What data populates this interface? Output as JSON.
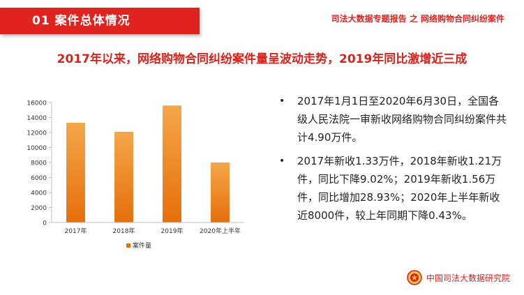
{
  "header": {
    "section_title": "01  案件总体情况",
    "report_title": "司法大数据专题报告 之 网络购物合同纠纷案件"
  },
  "headline": "2017年以来，网络购物合同纠纷案件量呈波动走势，2019年同比激增近三成",
  "chart_data": {
    "type": "bar",
    "categories": [
      "2017年",
      "2018年",
      "2019年",
      "2020年上半年"
    ],
    "series": [
      {
        "name": "案件量",
        "values": [
          13300,
          12100,
          15600,
          8000
        ]
      }
    ],
    "yticks": [
      "0",
      "2000",
      "4000",
      "6000",
      "8000",
      "10000",
      "12000",
      "14000",
      "16000"
    ],
    "ylim": [
      0,
      16000
    ],
    "grid": false,
    "legend": "bottom",
    "colors": {
      "bar_top": "#f5a64a",
      "bar_bottom": "#e56f0a",
      "axis": "#bfbfbf"
    }
  },
  "bullets": [
    "2017年1月1日至2020年6月30日，全国各级人民法院一审新收网络购物合同纠纷案件共计4.90万件。",
    "2017年新收1.33万件，2018年新收1.21万件，同比下降9.02%；2019年新收1.56万件，同比增加28.93%；2020年上半年新收近8000件，较上年同期下降0.43%。"
  ],
  "footer": {
    "logo_icon": "court-emblem-icon",
    "org_name": "中国司法大数据研究院"
  }
}
